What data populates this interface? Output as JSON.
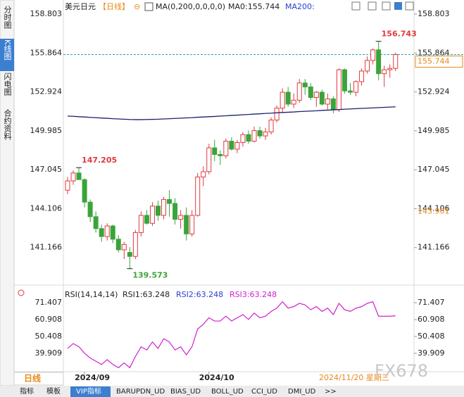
{
  "header": {
    "symbol": "美元日元",
    "period": "【日线】",
    "ma_label": "MA(0,200,0,0,0,0)",
    "ma0": "MA0:155.744",
    "ma200": "MA200:"
  },
  "sidebar": [
    "分时图",
    "K线图",
    "闪电图",
    "合约资料"
  ],
  "chart_data": [
    {
      "type": "candlestick",
      "categories": [
        null,
        null,
        null,
        "2024/09",
        null,
        null,
        null,
        null,
        null,
        null,
        null,
        null,
        null,
        null,
        null,
        null,
        null,
        null,
        null,
        null,
        null,
        null,
        null,
        null,
        null,
        "2024/10",
        null,
        null,
        null,
        null,
        null,
        null,
        null,
        null,
        null,
        null,
        null,
        null,
        null,
        null,
        null,
        null,
        null,
        null,
        null,
        null,
        null,
        null,
        null,
        null,
        null,
        null,
        null,
        null,
        null,
        null,
        null,
        null,
        null
      ],
      "open": [
        145.5,
        146.2,
        146.8,
        146.3,
        144.6,
        143.5,
        142.6,
        142.0,
        142.8,
        141.8,
        141.0,
        140.8,
        140.5,
        142.3,
        143.6,
        143.0,
        144.3,
        143.6,
        144.8,
        144.5,
        143.3,
        143.6,
        142.2,
        143.6,
        146.5,
        146.9,
        148.7,
        148.2,
        148.1,
        149.2,
        148.6,
        149.1,
        149.7,
        149.2,
        150.0,
        149.6,
        149.9,
        150.8,
        151.7,
        152.9,
        152.0,
        152.3,
        153.6,
        153.3,
        152.5,
        152.9,
        152.0,
        152.4,
        151.6,
        154.6,
        153.0,
        152.9,
        153.7,
        154.5,
        155.3,
        156.1,
        154.3,
        154.6,
        154.7
      ],
      "high": [
        146.5,
        147.0,
        147.205,
        146.4,
        144.8,
        143.9,
        142.9,
        143.0,
        142.9,
        142.1,
        141.6,
        141.2,
        142.5,
        143.9,
        144.0,
        144.6,
        144.7,
        145.0,
        145.5,
        144.9,
        144.0,
        144.2,
        144.0,
        146.8,
        147.3,
        149.0,
        149.3,
        148.5,
        149.4,
        149.5,
        149.3,
        149.9,
        150.0,
        150.3,
        150.3,
        150.2,
        151.0,
        151.9,
        153.2,
        153.3,
        152.8,
        153.9,
        153.9,
        153.6,
        153.0,
        153.1,
        152.8,
        152.6,
        154.7,
        154.7,
        153.6,
        153.8,
        154.7,
        155.6,
        156.2,
        156.743,
        154.9,
        155.0,
        155.9
      ],
      "low": [
        145.2,
        145.9,
        146.5,
        144.2,
        143.1,
        142.3,
        141.6,
        141.7,
        141.5,
        140.8,
        140.3,
        139.573,
        140.3,
        142.0,
        142.9,
        142.8,
        143.2,
        143.3,
        143.5,
        142.9,
        142.6,
        141.7,
        142.0,
        143.5,
        145.8,
        146.7,
        147.7,
        147.4,
        147.9,
        148.5,
        148.3,
        148.8,
        149.0,
        149.1,
        149.4,
        149.3,
        149.7,
        150.6,
        151.4,
        151.8,
        151.7,
        152.1,
        152.7,
        152.3,
        151.8,
        151.9,
        151.6,
        151.3,
        151.4,
        152.8,
        152.7,
        152.6,
        153.4,
        154.3,
        155.0,
        153.8,
        153.3,
        154.0,
        154.5
      ],
      "close": [
        146.2,
        146.8,
        146.3,
        144.6,
        143.5,
        142.6,
        142.0,
        142.8,
        141.8,
        141.0,
        141.4,
        140.5,
        142.3,
        143.6,
        143.0,
        144.3,
        143.6,
        144.8,
        144.5,
        143.3,
        143.6,
        142.2,
        143.6,
        146.5,
        146.9,
        148.7,
        148.2,
        148.1,
        149.2,
        148.6,
        149.1,
        149.7,
        149.2,
        150.0,
        149.6,
        149.9,
        150.8,
        151.7,
        152.9,
        152.0,
        152.3,
        153.6,
        153.3,
        152.5,
        152.9,
        152.0,
        152.4,
        151.6,
        154.6,
        153.0,
        152.9,
        153.7,
        154.5,
        155.3,
        156.1,
        154.3,
        154.6,
        154.7,
        155.744
      ],
      "ma200": {
        "color": "#1c1f6e",
        "values": [
          151.1,
          151.08,
          151.05,
          151.03,
          151.0,
          150.98,
          150.95,
          150.93,
          150.9,
          150.88,
          150.86,
          150.84,
          150.83,
          150.83,
          150.84,
          150.85,
          150.86,
          150.88,
          150.9,
          150.92,
          150.94,
          150.96,
          150.98,
          151.01,
          151.03,
          151.05,
          151.07,
          151.1,
          151.12,
          151.15,
          151.17,
          151.2,
          151.22,
          151.25,
          151.27,
          151.3,
          151.32,
          151.35,
          151.37,
          151.39,
          151.41,
          151.44,
          151.46,
          151.48,
          151.5,
          151.53,
          151.55,
          151.57,
          151.59,
          151.62,
          151.64,
          151.66,
          151.68,
          151.7,
          151.72,
          151.74,
          151.76,
          151.78,
          151.8
        ]
      },
      "up_color": "#e0393e",
      "down_color": "#3aa43a",
      "ylim": [
        138.6,
        159.6
      ],
      "yticks": [
        158.803,
        155.864,
        152.924,
        149.985,
        147.045,
        144.106,
        141.166
      ],
      "annotations": [
        "156.743",
        "147.205",
        "139.573"
      ],
      "right_labels": [
        "155.744",
        "143.901"
      ]
    },
    {
      "type": "line",
      "legend": [
        {
          "text": "RSI(14,14,14)",
          "color": "#222222"
        },
        {
          "text": "RSI1:63.248",
          "color": "#222222"
        },
        {
          "text": "RSI2:63.248",
          "color": "#2a3fd0"
        },
        {
          "text": "RSI3:63.248",
          "color": "#d020d0"
        }
      ],
      "color": "#d020d0",
      "values": [
        43,
        46,
        44,
        40,
        37,
        35,
        33,
        36,
        33,
        31,
        34,
        31,
        38,
        44,
        42,
        47,
        43,
        49,
        47,
        42,
        44,
        39,
        44,
        55,
        58,
        62,
        60,
        60,
        63,
        60,
        62,
        64,
        61,
        65,
        62,
        63,
        66,
        68,
        72,
        68,
        69,
        71,
        70,
        67,
        69,
        66,
        68,
        64,
        71,
        67,
        66,
        68,
        69,
        71,
        72,
        63,
        63,
        63,
        63.248
      ],
      "ylim": [
        29.85,
        80.16
      ],
      "yticks": [
        71.407,
        60.908,
        50.408,
        39.909
      ]
    }
  ],
  "footer": {
    "period": "日线",
    "date": "2024/11/20 星期三",
    "watermark": "FX678",
    "tabs": [
      "指标",
      "模板",
      "VIP指标",
      "BARUPDN_UD",
      "BIAS_UD",
      "BOLL_UD",
      "CCI_UD",
      "DMI_UD",
      ">>"
    ]
  }
}
